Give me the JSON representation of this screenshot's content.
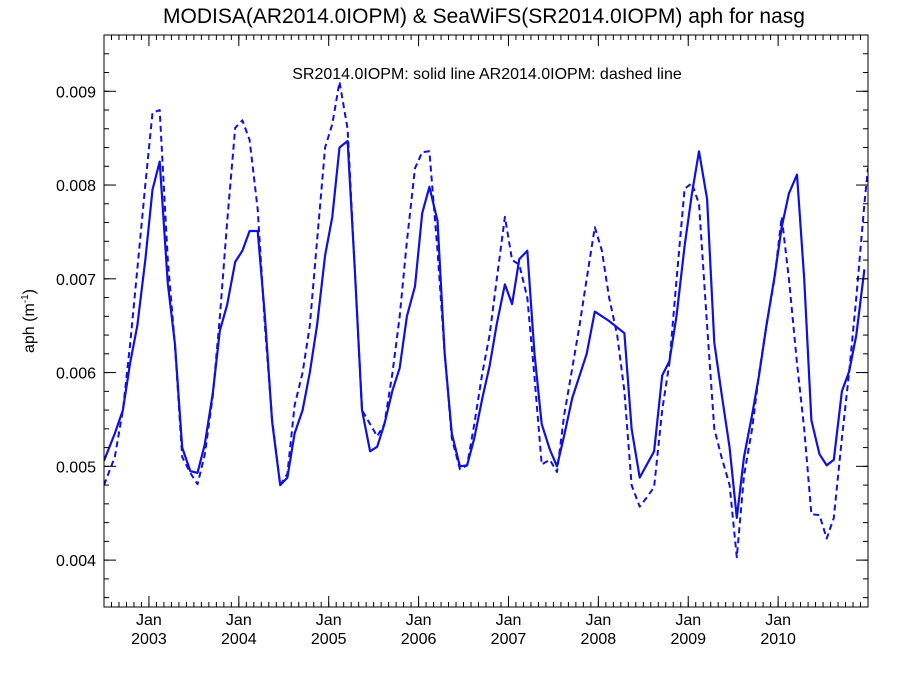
{
  "chart_data": {
    "type": "line",
    "title": "MODISA(AR2014.0IOPM) & SeaWiFS(SR2014.0IOPM)  aph for nasg",
    "annotation": "SR2014.0IOPM: solid line   AR2014.0IOPM: dashed line",
    "ylabel": "aph (m",
    "ylabel_sup": "-1",
    "ylabel_end": ")",
    "ylim": [
      0.0035,
      0.0096
    ],
    "xlim": [
      2002.5,
      2011.0
    ],
    "y_ticks": [
      {
        "value": 0.004,
        "label": "0.004"
      },
      {
        "value": 0.005,
        "label": "0.005"
      },
      {
        "value": 0.006,
        "label": "0.006"
      },
      {
        "value": 0.007,
        "label": "0.007"
      },
      {
        "value": 0.008,
        "label": "0.008"
      },
      {
        "value": 0.009,
        "label": "0.009"
      }
    ],
    "y_minor_step": 0.0002,
    "x_ticks": [
      {
        "value": 2003,
        "month": "Jan",
        "year": "2003"
      },
      {
        "value": 2004,
        "month": "Jan",
        "year": "2004"
      },
      {
        "value": 2005,
        "month": "Jan",
        "year": "2005"
      },
      {
        "value": 2006,
        "month": "Jan",
        "year": "2006"
      },
      {
        "value": 2007,
        "month": "Jan",
        "year": "2007"
      },
      {
        "value": 2008,
        "month": "Jan",
        "year": "2008"
      },
      {
        "value": 2009,
        "month": "Jan",
        "year": "2009"
      },
      {
        "value": 2010,
        "month": "Jan",
        "year": "2010"
      }
    ],
    "x_minor_step": 0.0833333,
    "color": "#1010e0",
    "series": [
      {
        "style": "solid",
        "points": [
          [
            2002.5,
            0.00506
          ],
          [
            2002.62,
            0.00535
          ],
          [
            2002.71,
            0.0056
          ],
          [
            2002.79,
            0.0061
          ],
          [
            2002.87,
            0.0065
          ],
          [
            2002.96,
            0.0072
          ],
          [
            2003.04,
            0.00795
          ],
          [
            2003.12,
            0.00825
          ],
          [
            2003.21,
            0.00695
          ],
          [
            2003.29,
            0.0063
          ],
          [
            2003.37,
            0.0052
          ],
          [
            2003.46,
            0.00495
          ],
          [
            2003.54,
            0.00493
          ],
          [
            2003.62,
            0.00523
          ],
          [
            2003.71,
            0.00578
          ],
          [
            2003.79,
            0.00645
          ],
          [
            2003.87,
            0.00672
          ],
          [
            2003.96,
            0.00718
          ],
          [
            2004.04,
            0.0073
          ],
          [
            2004.12,
            0.00751
          ],
          [
            2004.21,
            0.00751
          ],
          [
            2004.29,
            0.0066
          ],
          [
            2004.37,
            0.00548
          ],
          [
            2004.46,
            0.0048
          ],
          [
            2004.54,
            0.00488
          ],
          [
            2004.62,
            0.00535
          ],
          [
            2004.71,
            0.0056
          ],
          [
            2004.79,
            0.006
          ],
          [
            2004.87,
            0.0065
          ],
          [
            2004.96,
            0.00725
          ],
          [
            2005.04,
            0.00766
          ],
          [
            2005.12,
            0.0084
          ],
          [
            2005.21,
            0.00847
          ],
          [
            2005.29,
            0.0071
          ],
          [
            2005.37,
            0.0056
          ],
          [
            2005.46,
            0.00516
          ],
          [
            2005.54,
            0.00521
          ],
          [
            2005.62,
            0.00545
          ],
          [
            2005.71,
            0.00581
          ],
          [
            2005.79,
            0.00605
          ],
          [
            2005.87,
            0.0066
          ],
          [
            2005.96,
            0.00692
          ],
          [
            2006.04,
            0.0077
          ],
          [
            2006.12,
            0.00798
          ],
          [
            2006.21,
            0.00762
          ],
          [
            2006.29,
            0.0062
          ],
          [
            2006.37,
            0.00535
          ],
          [
            2006.46,
            0.005
          ],
          [
            2006.54,
            0.00501
          ],
          [
            2006.62,
            0.0053
          ],
          [
            2006.71,
            0.00573
          ],
          [
            2006.79,
            0.00607
          ],
          [
            2006.87,
            0.00652
          ],
          [
            2006.96,
            0.00694
          ],
          [
            2007.04,
            0.00673
          ],
          [
            2007.12,
            0.00721
          ],
          [
            2007.21,
            0.0073
          ],
          [
            2007.29,
            0.0062
          ],
          [
            2007.37,
            0.00545
          ],
          [
            2007.46,
            0.00518
          ],
          [
            2007.54,
            0.005
          ],
          [
            2007.62,
            0.00533
          ],
          [
            2007.71,
            0.00573
          ],
          [
            2007.87,
            0.0062
          ],
          [
            2007.96,
            0.00665
          ],
          [
            2008.12,
            0.00655
          ],
          [
            2008.29,
            0.00642
          ],
          [
            2008.37,
            0.0054
          ],
          [
            2008.46,
            0.00488
          ],
          [
            2008.62,
            0.00516
          ],
          [
            2008.71,
            0.00597
          ],
          [
            2008.79,
            0.00612
          ],
          [
            2008.87,
            0.00661
          ],
          [
            2008.96,
            0.00735
          ],
          [
            2009.04,
            0.0079
          ],
          [
            2009.12,
            0.00836
          ],
          [
            2009.21,
            0.00785
          ],
          [
            2009.29,
            0.00632
          ],
          [
            2009.37,
            0.00578
          ],
          [
            2009.46,
            0.0052
          ],
          [
            2009.54,
            0.00445
          ],
          [
            2009.62,
            0.0051
          ],
          [
            2009.71,
            0.00555
          ],
          [
            2009.79,
            0.00598
          ],
          [
            2009.87,
            0.0065
          ],
          [
            2009.96,
            0.00702
          ],
          [
            2010.04,
            0.00755
          ],
          [
            2010.12,
            0.00791
          ],
          [
            2010.21,
            0.00811
          ],
          [
            2010.29,
            0.007
          ],
          [
            2010.37,
            0.00549
          ],
          [
            2010.46,
            0.00513
          ],
          [
            2010.54,
            0.00501
          ],
          [
            2010.62,
            0.00507
          ],
          [
            2010.71,
            0.0058
          ],
          [
            2010.79,
            0.00601
          ],
          [
            2010.87,
            0.0064
          ],
          [
            2010.96,
            0.0071
          ]
        ]
      },
      {
        "style": "dashed",
        "points": [
          [
            2002.5,
            0.0048
          ],
          [
            2002.62,
            0.0051
          ],
          [
            2002.71,
            0.0056
          ],
          [
            2002.79,
            0.0063
          ],
          [
            2002.87,
            0.0071
          ],
          [
            2002.96,
            0.008
          ],
          [
            2003.04,
            0.00877
          ],
          [
            2003.12,
            0.0088
          ],
          [
            2003.21,
            0.0072
          ],
          [
            2003.29,
            0.00628
          ],
          [
            2003.37,
            0.0051
          ],
          [
            2003.46,
            0.00493
          ],
          [
            2003.54,
            0.00481
          ],
          [
            2003.62,
            0.00512
          ],
          [
            2003.71,
            0.00575
          ],
          [
            2003.79,
            0.0066
          ],
          [
            2003.87,
            0.0076
          ],
          [
            2003.96,
            0.00861
          ],
          [
            2004.04,
            0.00869
          ],
          [
            2004.12,
            0.00848
          ],
          [
            2004.21,
            0.00774
          ],
          [
            2004.29,
            0.0065
          ],
          [
            2004.37,
            0.0055
          ],
          [
            2004.46,
            0.0048
          ],
          [
            2004.54,
            0.00492
          ],
          [
            2004.62,
            0.00565
          ],
          [
            2004.71,
            0.006
          ],
          [
            2004.79,
            0.0065
          ],
          [
            2004.87,
            0.0074
          ],
          [
            2004.96,
            0.0084
          ],
          [
            2005.04,
            0.00865
          ],
          [
            2005.12,
            0.0091
          ],
          [
            2005.21,
            0.0086
          ],
          [
            2005.29,
            0.0071
          ],
          [
            2005.37,
            0.0056
          ],
          [
            2005.46,
            0.00545
          ],
          [
            2005.54,
            0.00532
          ],
          [
            2005.62,
            0.00545
          ],
          [
            2005.71,
            0.006
          ],
          [
            2005.79,
            0.0066
          ],
          [
            2005.87,
            0.0074
          ],
          [
            2005.96,
            0.00818
          ],
          [
            2006.04,
            0.00835
          ],
          [
            2006.12,
            0.00836
          ],
          [
            2006.21,
            0.0073
          ],
          [
            2006.29,
            0.0062
          ],
          [
            2006.37,
            0.0053
          ],
          [
            2006.46,
            0.00497
          ],
          [
            2006.54,
            0.00501
          ],
          [
            2006.62,
            0.00545
          ],
          [
            2006.71,
            0.006
          ],
          [
            2006.79,
            0.0064
          ],
          [
            2006.87,
            0.007
          ],
          [
            2006.96,
            0.00766
          ],
          [
            2007.04,
            0.0072
          ],
          [
            2007.12,
            0.00715
          ],
          [
            2007.21,
            0.0068
          ],
          [
            2007.29,
            0.00595
          ],
          [
            2007.37,
            0.00502
          ],
          [
            2007.46,
            0.00507
          ],
          [
            2007.54,
            0.00494
          ],
          [
            2007.62,
            0.00555
          ],
          [
            2007.71,
            0.00605
          ],
          [
            2007.79,
            0.0065
          ],
          [
            2007.87,
            0.007
          ],
          [
            2007.96,
            0.00755
          ],
          [
            2008.04,
            0.0073
          ],
          [
            2008.12,
            0.0068
          ],
          [
            2008.21,
            0.0064
          ],
          [
            2008.29,
            0.0058
          ],
          [
            2008.37,
            0.0048
          ],
          [
            2008.46,
            0.00457
          ],
          [
            2008.54,
            0.00467
          ],
          [
            2008.62,
            0.00478
          ],
          [
            2008.71,
            0.0056
          ],
          [
            2008.79,
            0.0061
          ],
          [
            2008.87,
            0.007
          ],
          [
            2008.96,
            0.00796
          ],
          [
            2009.04,
            0.00802
          ],
          [
            2009.12,
            0.0078
          ],
          [
            2009.21,
            0.0065
          ],
          [
            2009.29,
            0.0054
          ],
          [
            2009.37,
            0.0051
          ],
          [
            2009.46,
            0.0048
          ],
          [
            2009.54,
            0.00403
          ],
          [
            2009.62,
            0.0049
          ],
          [
            2009.71,
            0.0054
          ],
          [
            2009.79,
            0.006
          ],
          [
            2009.87,
            0.0065
          ],
          [
            2009.96,
            0.007
          ],
          [
            2010.04,
            0.00766
          ],
          [
            2010.12,
            0.007
          ],
          [
            2010.21,
            0.0061
          ],
          [
            2010.29,
            0.0054
          ],
          [
            2010.37,
            0.00449
          ],
          [
            2010.46,
            0.00448
          ],
          [
            2010.54,
            0.00423
          ],
          [
            2010.62,
            0.00445
          ],
          [
            2010.71,
            0.0053
          ],
          [
            2010.79,
            0.006
          ],
          [
            2010.87,
            0.0068
          ],
          [
            2010.96,
            0.0078
          ],
          [
            2011.0,
            0.00818
          ]
        ]
      }
    ]
  }
}
